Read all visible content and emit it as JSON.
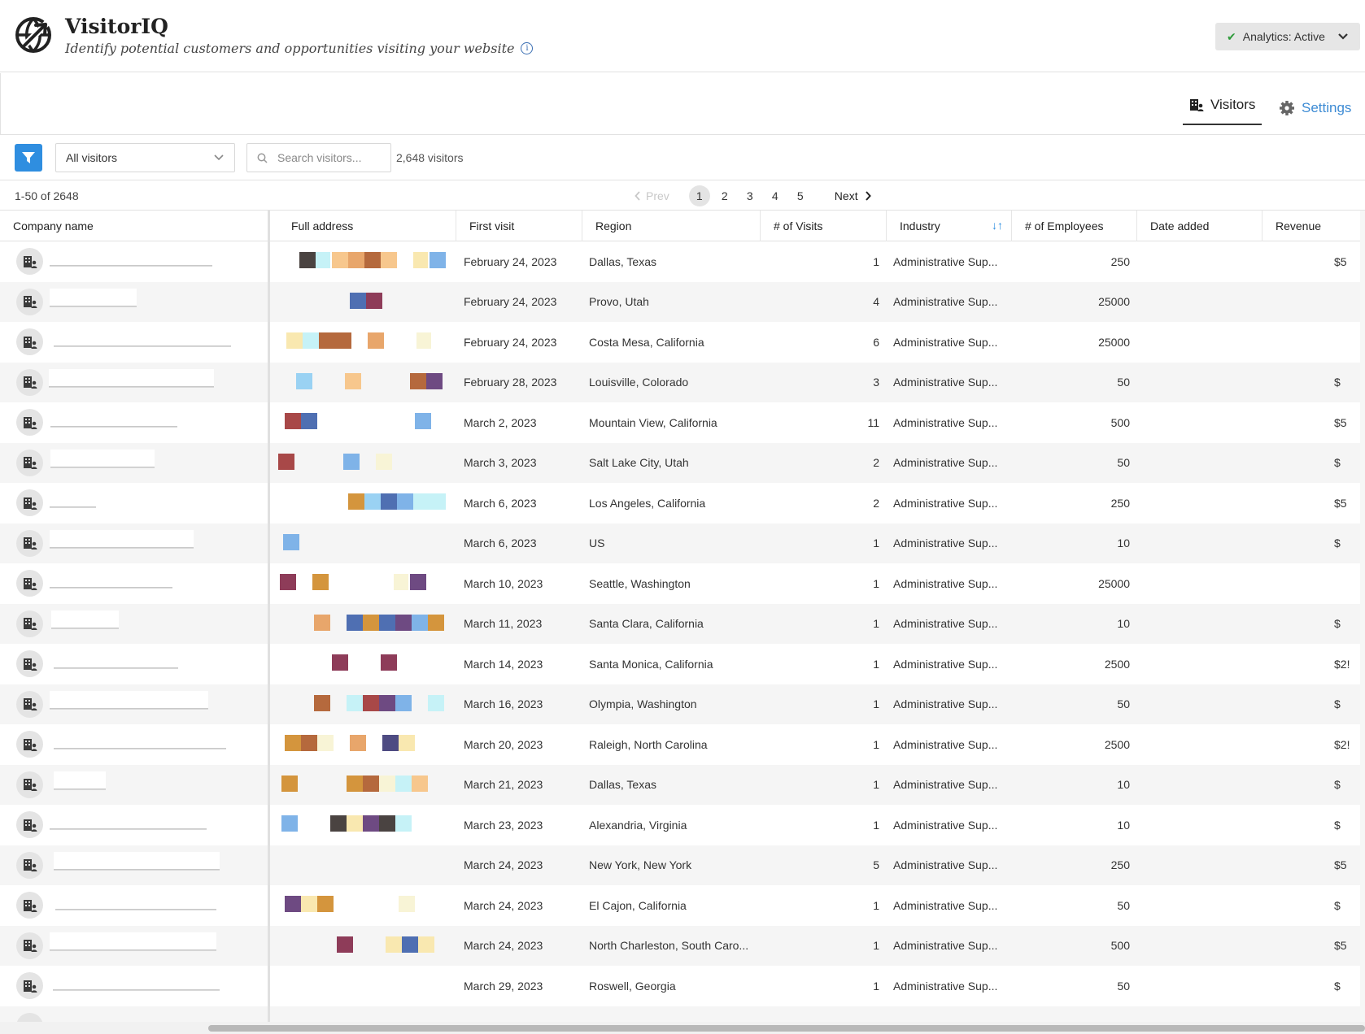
{
  "app": {
    "title": "VisitorIQ",
    "subtitle": "Identify potential customers and opportunities visiting your website",
    "analytics_status": "Analytics: Active"
  },
  "nav": {
    "visitors_label": "Visitors",
    "settings_label": "Settings"
  },
  "toolbar": {
    "filter_select_value": "All visitors",
    "search_placeholder": "Search visitors...",
    "visitor_count": "2,648 visitors"
  },
  "pagination": {
    "range": "1-50 of 2648",
    "prev_label": "Prev",
    "next_label": "Next",
    "pages": [
      "1",
      "2",
      "3",
      "4",
      "5"
    ],
    "current_page": "1"
  },
  "table": {
    "columns": [
      "Company name",
      "Full address",
      "First visit",
      "Region",
      "# of Visits",
      "Industry",
      "# of Employees",
      "Date added",
      "Revenue"
    ],
    "rows": [
      {
        "first_visit": "February 24, 2023",
        "region": "Dallas, Texas",
        "visits": "1",
        "industry": "Administrative Sup...",
        "employees": "250",
        "revenue": "$5"
      },
      {
        "first_visit": "February 24, 2023",
        "region": "Provo, Utah",
        "visits": "4",
        "industry": "Administrative Sup...",
        "employees": "25000",
        "revenue": ""
      },
      {
        "first_visit": "February 24, 2023",
        "region": "Costa Mesa, California",
        "visits": "6",
        "industry": "Administrative Sup...",
        "employees": "25000",
        "revenue": ""
      },
      {
        "first_visit": "February 28, 2023",
        "region": "Louisville, Colorado",
        "visits": "3",
        "industry": "Administrative Sup...",
        "employees": "50",
        "revenue": "$"
      },
      {
        "first_visit": "March 2, 2023",
        "region": "Mountain View, California",
        "visits": "11",
        "industry": "Administrative Sup...",
        "employees": "500",
        "revenue": "$5"
      },
      {
        "first_visit": "March 3, 2023",
        "region": "Salt Lake City, Utah",
        "visits": "2",
        "industry": "Administrative Sup...",
        "employees": "50",
        "revenue": "$"
      },
      {
        "first_visit": "March 6, 2023",
        "region": "Los Angeles, California",
        "visits": "2",
        "industry": "Administrative Sup...",
        "employees": "250",
        "revenue": "$5"
      },
      {
        "first_visit": "March 6, 2023",
        "region": "US",
        "visits": "1",
        "industry": "Administrative Sup...",
        "employees": "10",
        "revenue": "$"
      },
      {
        "first_visit": "March 10, 2023",
        "region": "Seattle, Washington",
        "visits": "1",
        "industry": "Administrative Sup...",
        "employees": "25000",
        "revenue": ""
      },
      {
        "first_visit": "March 11, 2023",
        "region": "Santa Clara, California",
        "visits": "1",
        "industry": "Administrative Sup...",
        "employees": "10",
        "revenue": "$"
      },
      {
        "first_visit": "March 14, 2023",
        "region": "Santa Monica, California",
        "visits": "1",
        "industry": "Administrative Sup...",
        "employees": "2500",
        "revenue": "$2!"
      },
      {
        "first_visit": "March 16, 2023",
        "region": "Olympia, Washington",
        "visits": "1",
        "industry": "Administrative Sup...",
        "employees": "50",
        "revenue": "$"
      },
      {
        "first_visit": "March 20, 2023",
        "region": "Raleigh, North Carolina",
        "visits": "1",
        "industry": "Administrative Sup...",
        "employees": "2500",
        "revenue": "$2!"
      },
      {
        "first_visit": "March 21, 2023",
        "region": "Dallas, Texas",
        "visits": "1",
        "industry": "Administrative Sup...",
        "employees": "10",
        "revenue": "$"
      },
      {
        "first_visit": "March 23, 2023",
        "region": "Alexandria, Virginia",
        "visits": "1",
        "industry": "Administrative Sup...",
        "employees": "10",
        "revenue": "$"
      },
      {
        "first_visit": "March 24, 2023",
        "region": "New York, New York",
        "visits": "5",
        "industry": "Administrative Sup...",
        "employees": "250",
        "revenue": "$5"
      },
      {
        "first_visit": "March 24, 2023",
        "region": "El Cajon, California",
        "visits": "1",
        "industry": "Administrative Sup...",
        "employees": "50",
        "revenue": "$"
      },
      {
        "first_visit": "March 24, 2023",
        "region": "North Charleston, South Caro...",
        "visits": "1",
        "industry": "Administrative Sup...",
        "employees": "500",
        "revenue": "$5"
      },
      {
        "first_visit": "March 29, 2023",
        "region": "Roswell, Georgia",
        "visits": "1",
        "industry": "Administrative Sup...",
        "employees": "50",
        "revenue": "$"
      }
    ]
  },
  "icons": {
    "logo": "globe-arrow-icon",
    "info": "info-icon",
    "check": "check-icon",
    "chevron": "chevron-down-icon",
    "visitors_tab": "building-user-icon",
    "settings_tab": "gear-icon",
    "filter": "filter-icon",
    "search": "search-icon",
    "company_avatar": "building-user-icon",
    "sort": "sort-icon"
  },
  "colors": {
    "accent": "#2f8ee0",
    "link": "#3d8bd4",
    "success": "#2e9b3a"
  }
}
